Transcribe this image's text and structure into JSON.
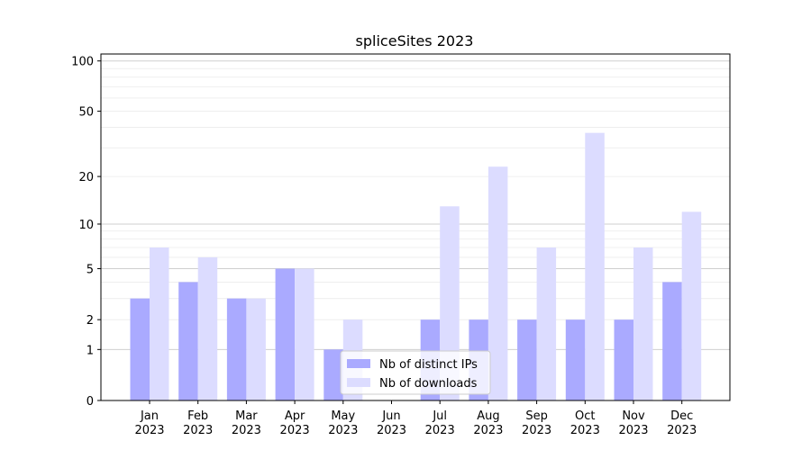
{
  "chart_data": {
    "type": "bar",
    "title": "spliceSites 2023",
    "xlabel": "",
    "ylabel": "",
    "yscale": "symlog",
    "ylim": [
      0,
      110
    ],
    "yticks": [
      0,
      1,
      2,
      5,
      10,
      20,
      50,
      100
    ],
    "grid": true,
    "legend_position": "lower-center",
    "categories": [
      "Jan\n2023",
      "Feb\n2023",
      "Mar\n2023",
      "Apr\n2023",
      "May\n2023",
      "Jun\n2023",
      "Jul\n2023",
      "Aug\n2023",
      "Sep\n2023",
      "Oct\n2023",
      "Nov\n2023",
      "Dec\n2023"
    ],
    "series": [
      {
        "name": "Nb of distinct IPs",
        "color": "#aaaaff",
        "values": [
          3,
          4,
          3,
          5,
          1,
          0,
          2,
          2,
          2,
          2,
          2,
          4
        ]
      },
      {
        "name": "Nb of downloads",
        "color": "#dcdcff",
        "values": [
          7,
          6,
          3,
          5,
          2,
          0,
          13,
          23,
          7,
          37,
          7,
          12
        ]
      }
    ]
  }
}
